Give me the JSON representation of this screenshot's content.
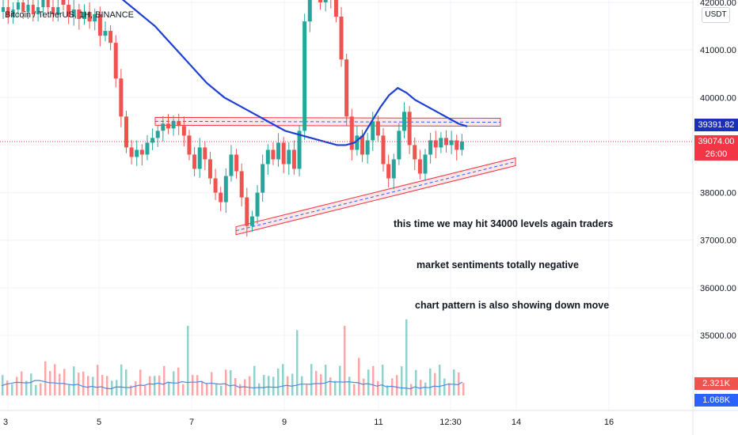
{
  "title": "Bitcoin / TetherUS, 1H, BINANCE",
  "currency_badge": "USDT",
  "annotations": [
    "this time we may hit 34000 levels again traders",
    "market sentiments totally negative",
    "chart pattern is also showing down move"
  ],
  "price_axis": {
    "ticks": [
      "42000.00",
      "41000.00",
      "40000.00",
      "38000.00",
      "37000.00",
      "36000.00",
      "35000.00"
    ],
    "tag_ma": "39391.82",
    "tag_last": "39074.00",
    "tag_countdown": "26:00",
    "tag_vol1": "2.321K",
    "tag_vol2": "1.068K"
  },
  "time_axis": {
    "ticks": [
      "3",
      "5",
      "7",
      "9",
      "11",
      "12:30",
      "14",
      "16"
    ]
  },
  "colors": {
    "up": "#26a69a",
    "down": "#ef5350",
    "ma": "#1d3fd6",
    "channel": "#f23645",
    "volume_ma": "#4c8ae0",
    "last_price": "#f23645",
    "ma_tag": "#1c2fb8",
    "vol_tag2": "#2962ff"
  },
  "chart_data": {
    "type": "candlestick",
    "symbol": "BTCUSDT",
    "timeframe": "1H",
    "exchange": "BINANCE",
    "ylim": [
      34700,
      42300
    ],
    "last_price": 39074.0,
    "ma_value": 39391.82,
    "price_series": [
      [
        42100,
        41950
      ],
      [
        41950,
        41700
      ],
      [
        41700,
        41850
      ],
      [
        41850,
        41650
      ],
      [
        41650,
        41800
      ],
      [
        41800,
        41600
      ],
      [
        41600,
        41750
      ],
      [
        41750,
        41300
      ],
      [
        41300,
        41400
      ],
      [
        41400,
        41150
      ],
      [
        41150,
        40400
      ],
      [
        40400,
        39600
      ],
      [
        39600,
        38950
      ],
      [
        38950,
        38750
      ],
      [
        38750,
        38900
      ],
      [
        38900,
        38800
      ],
      [
        38800,
        39050
      ],
      [
        39050,
        39150
      ],
      [
        39150,
        39300
      ],
      [
        39300,
        39450
      ],
      [
        39450,
        39350
      ],
      [
        39350,
        39500
      ],
      [
        39500,
        39400
      ],
      [
        39400,
        39200
      ],
      [
        39200,
        38800
      ],
      [
        38800,
        38500
      ],
      [
        38500,
        38950
      ],
      [
        38950,
        38700
      ],
      [
        38700,
        38300
      ],
      [
        38300,
        38000
      ],
      [
        38000,
        37800
      ],
      [
        37800,
        38350
      ],
      [
        38350,
        38800
      ],
      [
        38800,
        38450
      ],
      [
        38450,
        37900
      ],
      [
        37900,
        37300
      ],
      [
        37300,
        37500
      ],
      [
        37500,
        38000
      ],
      [
        38000,
        38600
      ],
      [
        38600,
        38900
      ],
      [
        38900,
        38700
      ],
      [
        38700,
        39050
      ],
      [
        39050,
        38600
      ],
      [
        38600,
        38900
      ],
      [
        38900,
        38500
      ],
      [
        38500,
        39300
      ],
      [
        39300,
        41600
      ],
      [
        41600,
        42200
      ],
      [
        42200,
        42300
      ],
      [
        42300,
        42000
      ],
      [
        42000,
        42250
      ],
      [
        42250,
        42100
      ],
      [
        42100,
        41700
      ],
      [
        41700,
        40800
      ],
      [
        40800,
        39600
      ],
      [
        39600,
        38900
      ],
      [
        38900,
        39200
      ],
      [
        39200,
        38800
      ],
      [
        38800,
        39100
      ],
      [
        39100,
        39500
      ],
      [
        39500,
        39200
      ],
      [
        39200,
        38600
      ],
      [
        38600,
        38300
      ],
      [
        38300,
        38700
      ],
      [
        38700,
        39300
      ],
      [
        39300,
        39700
      ],
      [
        39700,
        39000
      ],
      [
        39000,
        38700
      ],
      [
        38700,
        38400
      ],
      [
        38400,
        38800
      ],
      [
        38800,
        39100
      ],
      [
        39100,
        38950
      ],
      [
        38950,
        39150
      ],
      [
        39150,
        39000
      ],
      [
        39000,
        39100
      ],
      [
        39100,
        38900
      ],
      [
        38900,
        39074
      ]
    ],
    "moving_average": [
      42300,
      42200,
      42100,
      41950,
      41800,
      41650,
      41500,
      41300,
      41100,
      40900,
      40700,
      40500,
      40300,
      40150,
      40000,
      39900,
      39800,
      39700,
      39600,
      39500,
      39400,
      39300,
      39250,
      39200,
      39150,
      39100,
      39050,
      39000,
      39000,
      39050,
      39200,
      39500,
      39800,
      40050,
      40200,
      40100,
      39950,
      39850,
      39750,
      39650,
      39550,
      39450,
      39392
    ],
    "channel_upper": {
      "from": 39500,
      "to": 39480
    },
    "channel_lower": {
      "from": 37200,
      "to": 38650
    }
  }
}
